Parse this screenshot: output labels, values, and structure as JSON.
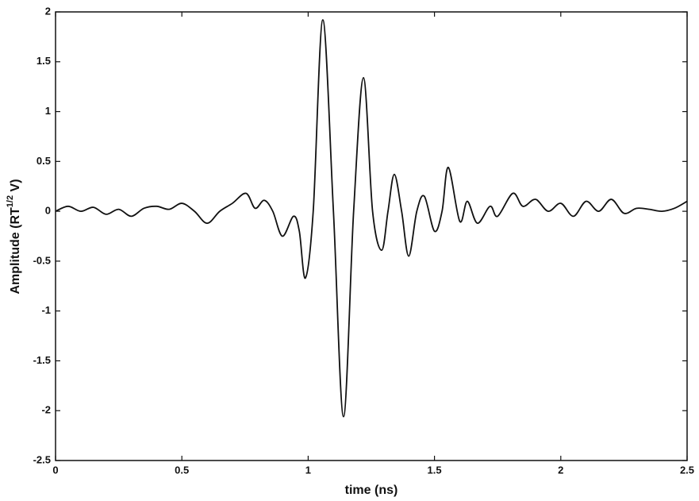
{
  "chart_data": {
    "type": "line",
    "xlabel": "time (ns)",
    "ylabel": [
      "Amplitude (RT",
      "1/2",
      " V)"
    ],
    "xlim": [
      0,
      2.5
    ],
    "ylim": [
      -2.5,
      2
    ],
    "xticks": [
      0,
      0.5,
      1,
      1.5,
      2,
      2.5
    ],
    "yticks": [
      2,
      1.5,
      1,
      0.5,
      0,
      -0.5,
      -1,
      -1.5,
      -2,
      -2.5
    ],
    "grid": false,
    "x": [
      0,
      0.05,
      0.1,
      0.15,
      0.2,
      0.25,
      0.3,
      0.35,
      0.4,
      0.45,
      0.5,
      0.55,
      0.6,
      0.65,
      0.7,
      0.754,
      0.79,
      0.826,
      0.86,
      0.898,
      0.942,
      0.965,
      0.989,
      1.02,
      1.058,
      1.1,
      1.14,
      1.18,
      1.219,
      1.255,
      1.291,
      1.316,
      1.341,
      1.37,
      1.398,
      1.43,
      1.46,
      1.5,
      1.53,
      1.555,
      1.6,
      1.63,
      1.67,
      1.72,
      1.75,
      1.81,
      1.85,
      1.9,
      1.95,
      2.0,
      2.05,
      2.1,
      2.15,
      2.2,
      2.25,
      2.3,
      2.35,
      2.4,
      2.45,
      2.5
    ],
    "series": [
      {
        "color": "#111111",
        "values": [
          0,
          0.05,
          0,
          0.04,
          -0.03,
          0.02,
          -0.05,
          0.03,
          0.05,
          0.02,
          0.08,
          0,
          -0.12,
          0,
          0.08,
          0.18,
          0.03,
          0.11,
          0,
          -0.25,
          -0.05,
          -0.2,
          -0.67,
          0,
          1.92,
          0,
          -2.06,
          0,
          1.34,
          0,
          -0.39,
          0,
          0.37,
          0,
          -0.45,
          0,
          0.15,
          -0.2,
          0,
          0.44,
          -0.1,
          0.1,
          -0.12,
          0.05,
          -0.05,
          0.18,
          0.05,
          0.12,
          0,
          0.08,
          -0.05,
          0.1,
          0,
          0.12,
          -0.02,
          0.03,
          0.02,
          0,
          0.03,
          0.1
        ]
      }
    ]
  }
}
